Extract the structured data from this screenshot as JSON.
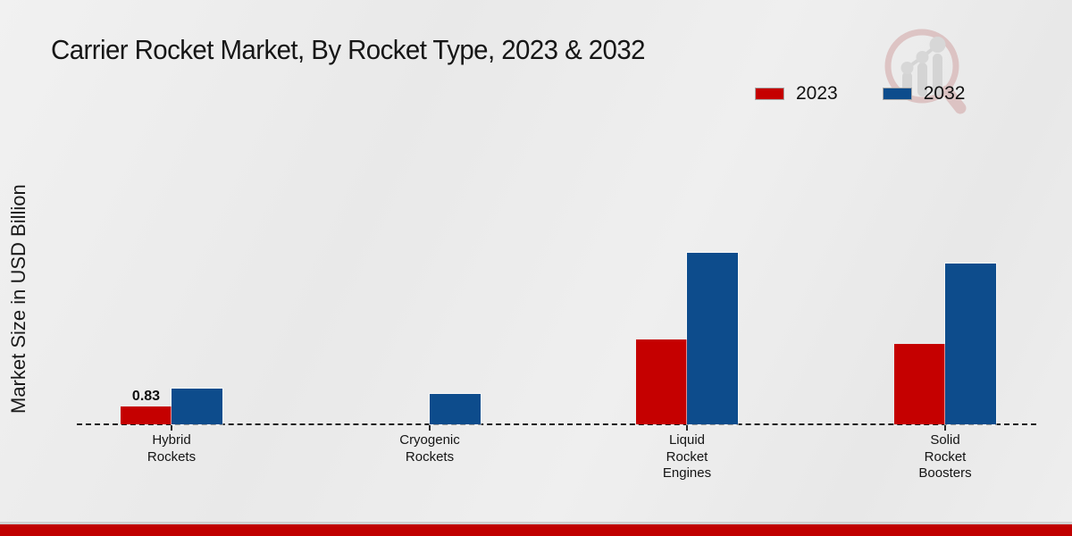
{
  "chart": {
    "title": "Carrier Rocket Market, By Rocket Type, 2023 & 2032"
  },
  "chart_data": {
    "type": "bar",
    "title": "Carrier Rocket Market, By Rocket Type, 2023 & 2032",
    "xlabel": "",
    "ylabel": "Market Size in USD Billion",
    "units": "USD Billion",
    "categories": [
      "Hybrid Rockets",
      "Cryogenic Rockets",
      "Liquid Rocket Engines",
      "Solid Rocket Boosters"
    ],
    "series": [
      {
        "name": "2023",
        "color": "#c50000",
        "values": [
          0.83,
          0,
          3.95,
          3.75
        ]
      },
      {
        "name": "2032",
        "color": "#0d4c8c",
        "values": [
          1.65,
          1.4,
          8.0,
          7.5
        ]
      }
    ],
    "value_labels_visible": [
      {
        "series": "2023",
        "category": "Hybrid Rockets",
        "text": "0.83"
      }
    ],
    "ylim": [
      0,
      10
    ],
    "grid": false,
    "axis_ticks_labeled": false,
    "baseline_style": "dashed",
    "legend_position": "top-right"
  },
  "colors": {
    "series_2023": "#c50000",
    "series_2032": "#0d4c8c",
    "footer_bar": "#c00000",
    "background": "#ebebeb",
    "axis_line": "#1c1c1c"
  },
  "icons": {
    "watermark": "magnifier-growth-chart-logo"
  }
}
